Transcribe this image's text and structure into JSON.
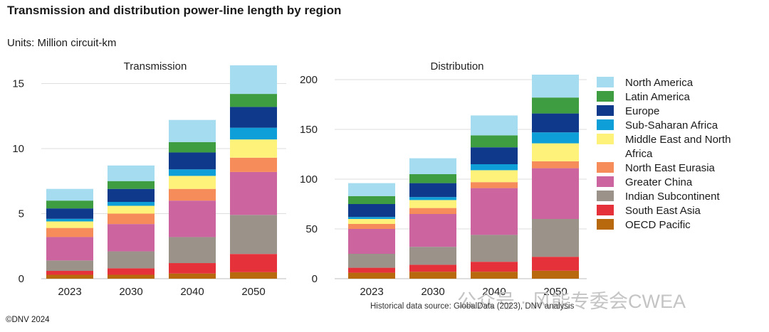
{
  "header": {
    "title": "Transmission and distribution power-line length by region",
    "units_label": "Units:",
    "units_value": "Million circuit-km"
  },
  "footer": {
    "copyright": "©DNV 2024",
    "source": "Historical data source: GlobalData (2023), DNV analysis",
    "watermark": "公众号 · 风能专委会CWEA"
  },
  "colors": {
    "North America": "#a6dcf0",
    "Latin America": "#3e9c41",
    "Europe": "#0f3a8c",
    "Sub-Saharan Africa": "#0f9fd8",
    "Middle East and North Africa": "#fff27a",
    "North East Eurasia": "#f58c5a",
    "Greater China": "#cc64a0",
    "Indian Subcontinent": "#9b928a",
    "South East Asia": "#e5313a",
    "OECD Pacific": "#b8690e"
  },
  "legend": [
    {
      "label": "North America"
    },
    {
      "label": "Latin America"
    },
    {
      "label": "Europe"
    },
    {
      "label": "Sub-Saharan Africa"
    },
    {
      "label": "Middle East and North Africa"
    },
    {
      "label": "North East Eurasia"
    },
    {
      "label": "Greater China"
    },
    {
      "label": "Indian Subcontinent"
    },
    {
      "label": "South East Asia"
    },
    {
      "label": "OECD Pacific"
    }
  ],
  "chart_data": [
    {
      "type": "bar",
      "stacked": true,
      "title": "Transmission",
      "categories": [
        "2023",
        "2030",
        "2040",
        "2050"
      ],
      "ylim": [
        0,
        16.5
      ],
      "yticks": [
        0,
        5,
        10,
        15
      ],
      "grid": true,
      "series": [
        {
          "name": "OECD Pacific",
          "values": [
            0.3,
            0.3,
            0.4,
            0.5
          ]
        },
        {
          "name": "South East Asia",
          "values": [
            0.3,
            0.5,
            0.8,
            1.4
          ]
        },
        {
          "name": "Indian Subcontinent",
          "values": [
            0.8,
            1.3,
            2.0,
            3.0
          ]
        },
        {
          "name": "Greater China",
          "values": [
            1.8,
            2.1,
            2.8,
            3.3
          ]
        },
        {
          "name": "North East Eurasia",
          "values": [
            0.7,
            0.8,
            0.9,
            1.1
          ]
        },
        {
          "name": "Middle East and North Africa",
          "values": [
            0.5,
            0.6,
            1.0,
            1.4
          ]
        },
        {
          "name": "Sub-Saharan Africa",
          "values": [
            0.2,
            0.3,
            0.5,
            0.9
          ]
        },
        {
          "name": "Europe",
          "values": [
            0.8,
            1.0,
            1.3,
            1.6
          ]
        },
        {
          "name": "Latin America",
          "values": [
            0.6,
            0.6,
            0.8,
            1.0
          ]
        },
        {
          "name": "North America",
          "values": [
            0.9,
            1.2,
            1.7,
            2.2
          ]
        }
      ]
    },
    {
      "type": "bar",
      "stacked": true,
      "title": "Distribution",
      "categories": [
        "2023",
        "2030",
        "2040",
        "2050"
      ],
      "ylim": [
        0,
        210
      ],
      "yticks": [
        0,
        50,
        100,
        150,
        200
      ],
      "grid": true,
      "series": [
        {
          "name": "OECD Pacific",
          "values": [
            6,
            7,
            7,
            8
          ]
        },
        {
          "name": "South East Asia",
          "values": [
            5,
            7,
            10,
            14
          ]
        },
        {
          "name": "Indian Subcontinent",
          "values": [
            14,
            18,
            27,
            38
          ]
        },
        {
          "name": "Greater China",
          "values": [
            25,
            33,
            47,
            51
          ]
        },
        {
          "name": "North East Eurasia",
          "values": [
            5,
            6,
            6,
            7
          ]
        },
        {
          "name": "Middle East and North Africa",
          "values": [
            5,
            8,
            12,
            18
          ]
        },
        {
          "name": "Sub-Saharan Africa",
          "values": [
            2,
            3,
            6,
            11
          ]
        },
        {
          "name": "Europe",
          "values": [
            13,
            14,
            17,
            19
          ]
        },
        {
          "name": "Latin America",
          "values": [
            8,
            9,
            12,
            16
          ]
        },
        {
          "name": "North America",
          "values": [
            13,
            16,
            20,
            23
          ]
        }
      ]
    }
  ]
}
